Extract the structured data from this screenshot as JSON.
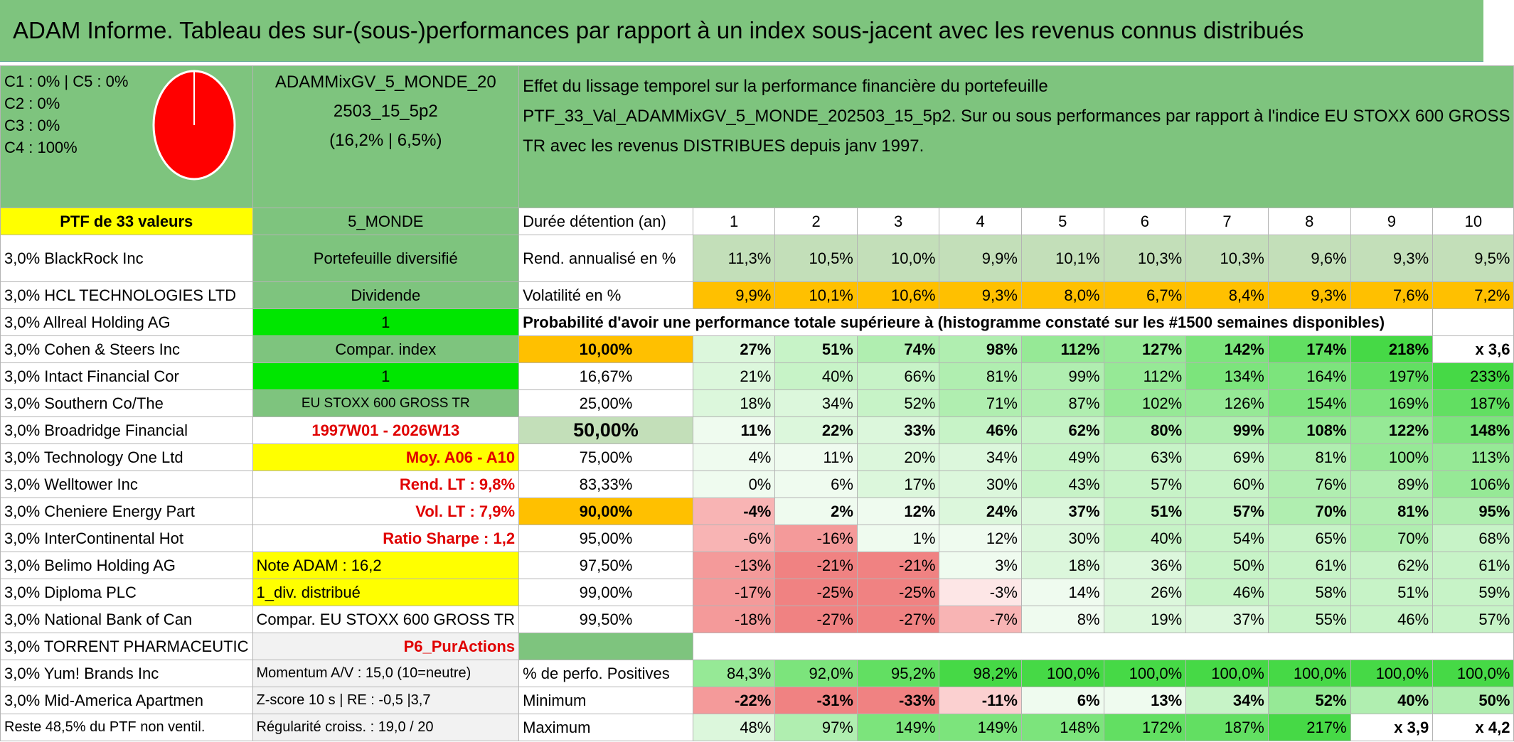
{
  "title": "ADAM Informe. Tableau des sur-(sous-)performances par rapport à un index sous-jacent avec les revenus connus distribués",
  "compo": [
    "C1 : 0% | C5 : 0%",
    "C2 : 0%",
    "C3 : 0%",
    "C4 : 100%"
  ],
  "portfolio_name": [
    "ADAMMixGV_5_MONDE_20",
    "2503_15_5p2",
    "(16,2% | 6,5%)"
  ],
  "description": [
    "Effet du lissage temporel sur la performance financière du portefeuille",
    "PTF_33_Val_ADAMMixGV_5_MONDE_202503_15_5p2. Sur ou sous performances par rapport à l'indice EU STOXX 600 GROSS",
    "TR avec les revenus DISTRIBUES depuis janv 1997."
  ],
  "ptf_label": "PTF de 33 valeurs",
  "zone": "5_MONDE",
  "duree_label": "Durée détention (an)",
  "years": [
    "1",
    "2",
    "3",
    "4",
    "5",
    "6",
    "7",
    "8",
    "9",
    "10"
  ],
  "rend_label": "Rend. annualisé en %",
  "rend": [
    "11,3%",
    "10,5%",
    "10,0%",
    "9,9%",
    "10,1%",
    "10,3%",
    "10,3%",
    "9,6%",
    "9,3%",
    "9,5%"
  ],
  "vol_label": "Volatilité en %",
  "vol": [
    "9,9%",
    "10,1%",
    "10,6%",
    "9,3%",
    "8,0%",
    "6,7%",
    "8,4%",
    "9,3%",
    "7,6%",
    "7,2%"
  ],
  "prob_label": "Probabilité d'avoir une performance totale supérieure à (histogramme constaté sur les #1500 semaines disponibles)",
  "holdings": [
    "3,0% BlackRock Inc",
    "3,0% HCL TECHNOLOGIES LTD",
    "3,0% Allreal Holding AG",
    "3,0% Cohen & Steers Inc",
    "3,0% Intact Financial Cor",
    "3,0% Southern Co/The",
    "3,0% Broadridge Financial",
    "3,0% Technology One Ltd",
    "3,0% Welltower Inc",
    "3,0% Cheniere Energy Part",
    "3,0% InterContinental Hot",
    "3,0% Belimo Holding AG",
    "3,0% Diploma PLC",
    "3,0% National Bank of Can",
    "3,0% TORRENT PHARMACEUTIC",
    "3,0% Yum! Brands Inc",
    "3,0% Mid-America Apartmen",
    "Reste 48,5% du PTF non ventil."
  ],
  "info": {
    "diversifie": "Portefeuille diversifié",
    "dividende": "Dividende",
    "one_a": "1",
    "compar": "Compar. index",
    "one_b": "1",
    "index": "EU STOXX 600 GROSS TR",
    "period": "1997W01 - 2026W13",
    "moy": "Moy. A06 - A10",
    "rend_lt": "Rend. LT : 9,8%",
    "vol_lt": "Vol. LT : 7,9%",
    "sharpe": "Ratio Sharpe : 1,2",
    "note": "Note ADAM : 16,2",
    "div": "1_div. distribué",
    "compar_full": "Compar. EU STOXX 600 GROSS TR",
    "p6": "P6_PurActions",
    "momentum": "Momentum A/V : 15,0 (10=neutre)",
    "zscore": "Z-score 10 s | RE : -0,5 |3,7",
    "regul": "Régularité croiss. : 19,0 / 20"
  },
  "prob_rows": [
    {
      "q": "10,00%",
      "v": [
        "27%",
        "51%",
        "74%",
        "98%",
        "112%",
        "127%",
        "142%",
        "174%",
        "218%",
        "x 3,6"
      ]
    },
    {
      "q": "16,67%",
      "v": [
        "21%",
        "40%",
        "66%",
        "81%",
        "99%",
        "112%",
        "134%",
        "164%",
        "197%",
        "233%"
      ]
    },
    {
      "q": "25,00%",
      "v": [
        "18%",
        "34%",
        "52%",
        "71%",
        "87%",
        "102%",
        "126%",
        "154%",
        "169%",
        "187%"
      ]
    },
    {
      "q": "50,00%",
      "v": [
        "11%",
        "22%",
        "33%",
        "46%",
        "62%",
        "80%",
        "99%",
        "108%",
        "122%",
        "148%"
      ]
    },
    {
      "q": "75,00%",
      "v": [
        "4%",
        "11%",
        "20%",
        "34%",
        "49%",
        "63%",
        "69%",
        "81%",
        "100%",
        "113%"
      ]
    },
    {
      "q": "83,33%",
      "v": [
        "0%",
        "6%",
        "17%",
        "30%",
        "43%",
        "57%",
        "60%",
        "76%",
        "89%",
        "106%"
      ]
    },
    {
      "q": "90,00%",
      "v": [
        "-4%",
        "2%",
        "12%",
        "24%",
        "37%",
        "51%",
        "57%",
        "70%",
        "81%",
        "95%"
      ]
    },
    {
      "q": "95,00%",
      "v": [
        "-6%",
        "-16%",
        "1%",
        "12%",
        "30%",
        "40%",
        "54%",
        "65%",
        "70%",
        "68%"
      ]
    },
    {
      "q": "97,50%",
      "v": [
        "-13%",
        "-21%",
        "-21%",
        "3%",
        "18%",
        "36%",
        "50%",
        "61%",
        "62%",
        "61%"
      ]
    },
    {
      "q": "99,00%",
      "v": [
        "-17%",
        "-25%",
        "-25%",
        "-3%",
        "14%",
        "26%",
        "46%",
        "58%",
        "51%",
        "59%"
      ]
    },
    {
      "q": "99,50%",
      "v": [
        "-18%",
        "-27%",
        "-27%",
        "-7%",
        "8%",
        "19%",
        "37%",
        "55%",
        "46%",
        "57%"
      ]
    }
  ],
  "pos_label": "% de perfo. Positives",
  "pos": [
    "84,3%",
    "92,0%",
    "95,2%",
    "98,2%",
    "100,0%",
    "100,0%",
    "100,0%",
    "100,0%",
    "100,0%",
    "100,0%"
  ],
  "min_label": "Minimum",
  "min": [
    "-22%",
    "-31%",
    "-33%",
    "-11%",
    "6%",
    "13%",
    "34%",
    "52%",
    "40%",
    "50%"
  ],
  "max_label": "Maximum",
  "max": [
    "48%",
    "97%",
    "149%",
    "149%",
    "148%",
    "172%",
    "187%",
    "217%",
    "x 3,9",
    "x 4,2"
  ],
  "colors": {
    "header_green": "#7ec47e",
    "bright_green": "#00e600",
    "yellow": "#ffff00",
    "orange": "#ffc000",
    "pie_red": "#ff0000",
    "text_red": "#e00000"
  }
}
